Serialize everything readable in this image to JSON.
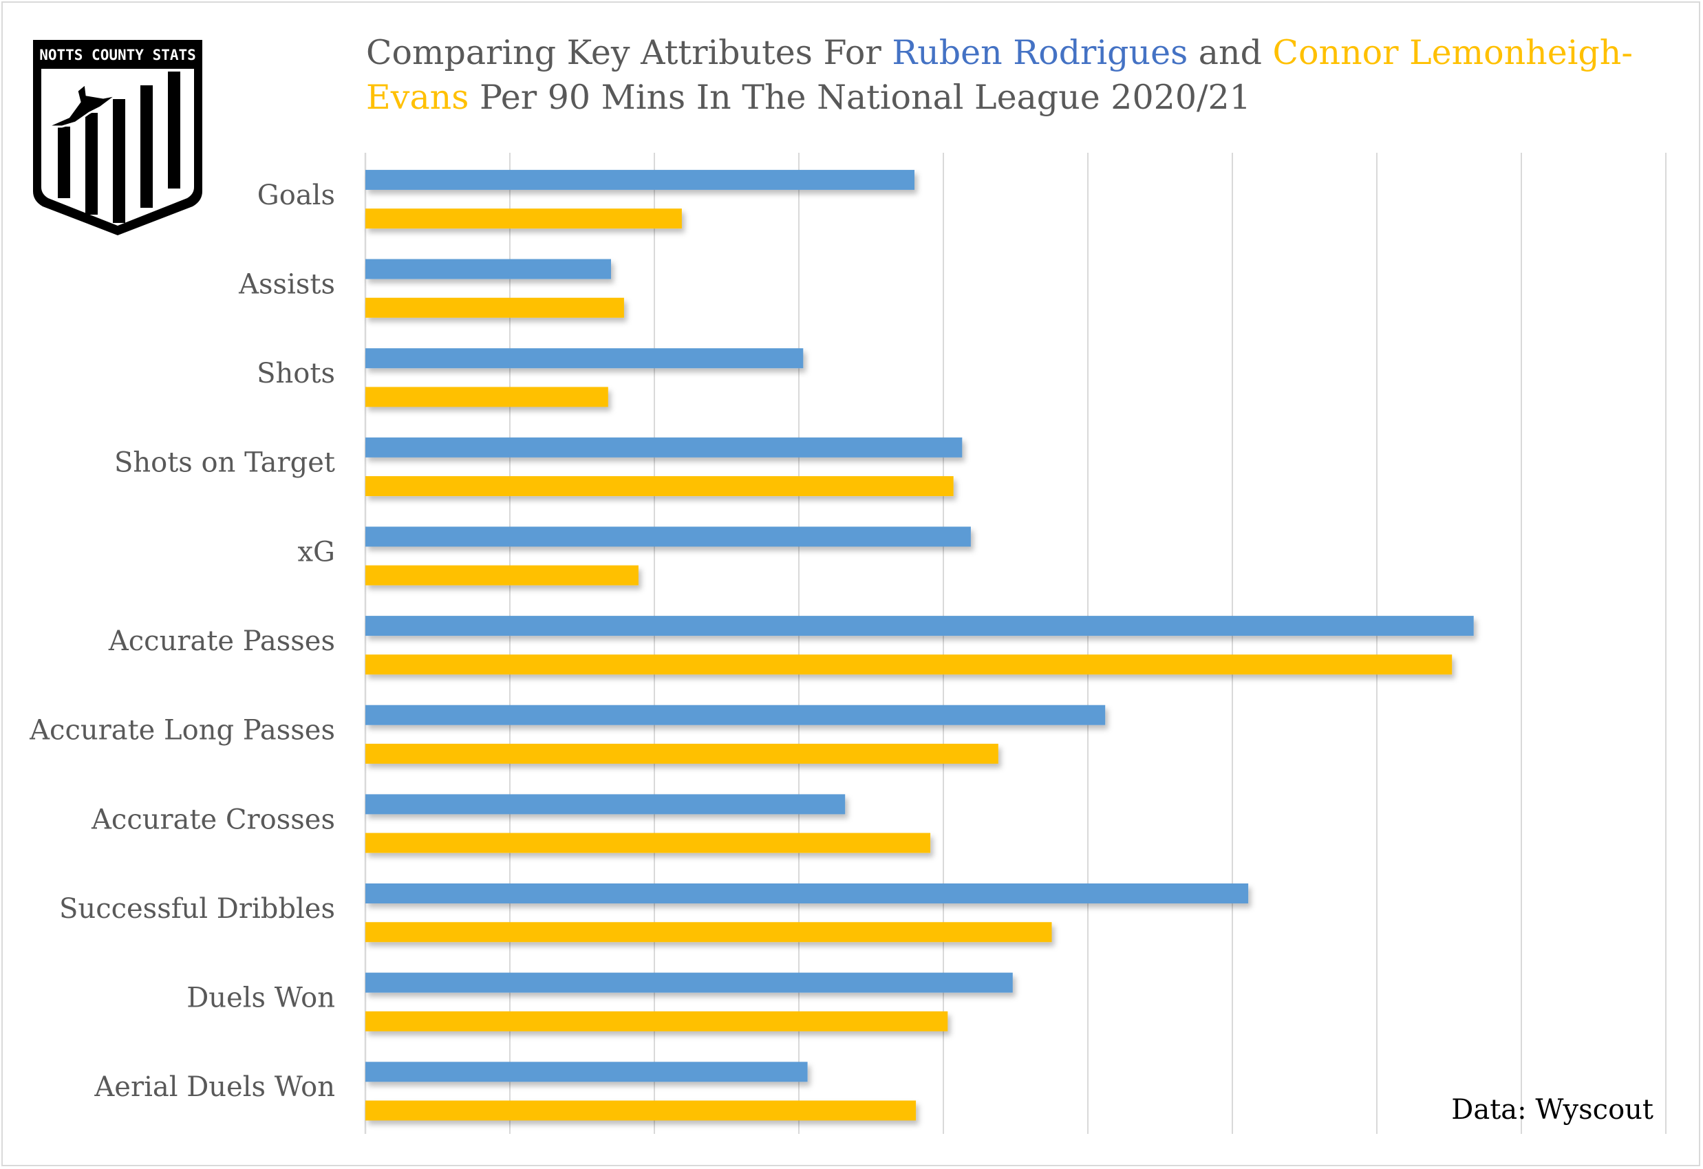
{
  "title": {
    "part1": "Comparing Key Attributes For ",
    "player1": "Ruben Rodrigues",
    "part2": " and ",
    "player2": "Connor Lemonheigh-Evans",
    "part3": " Per 90 Mins In The National League 2020/21"
  },
  "logo": {
    "text": "NOTTS COUNTY STATS",
    "icon": "bird-bars-crest-icon"
  },
  "source": "Data: Wyscout",
  "colors": {
    "player1": "#5b9bd5",
    "player2": "#ffc000",
    "title_text": "#595959",
    "grid": "#d9d9d9"
  },
  "chart_data": {
    "type": "bar",
    "orientation": "horizontal",
    "categories": [
      "Goals",
      "Assists",
      "Shots",
      "Shots on Target",
      "xG",
      "Accurate Passes",
      "Accurate Long Passes",
      "Accurate Crosses",
      "Successful Dribbles",
      "Duels Won",
      "Aerial Duels Won"
    ],
    "series": [
      {
        "name": "Ruben Rodrigues",
        "color": "#5b9bd5",
        "values": [
          3.8,
          1.7,
          3.03,
          4.13,
          4.19,
          7.67,
          5.12,
          3.32,
          6.11,
          4.48,
          3.06
        ]
      },
      {
        "name": "Connor Lemonheigh-Evans",
        "color": "#ffc000",
        "values": [
          2.19,
          1.79,
          1.68,
          4.07,
          1.89,
          7.52,
          4.38,
          3.91,
          4.75,
          4.03,
          3.81
        ]
      }
    ],
    "xlim": [
      0,
      9
    ],
    "grid": true,
    "x_tick_labels": false,
    "legend": "in title"
  }
}
